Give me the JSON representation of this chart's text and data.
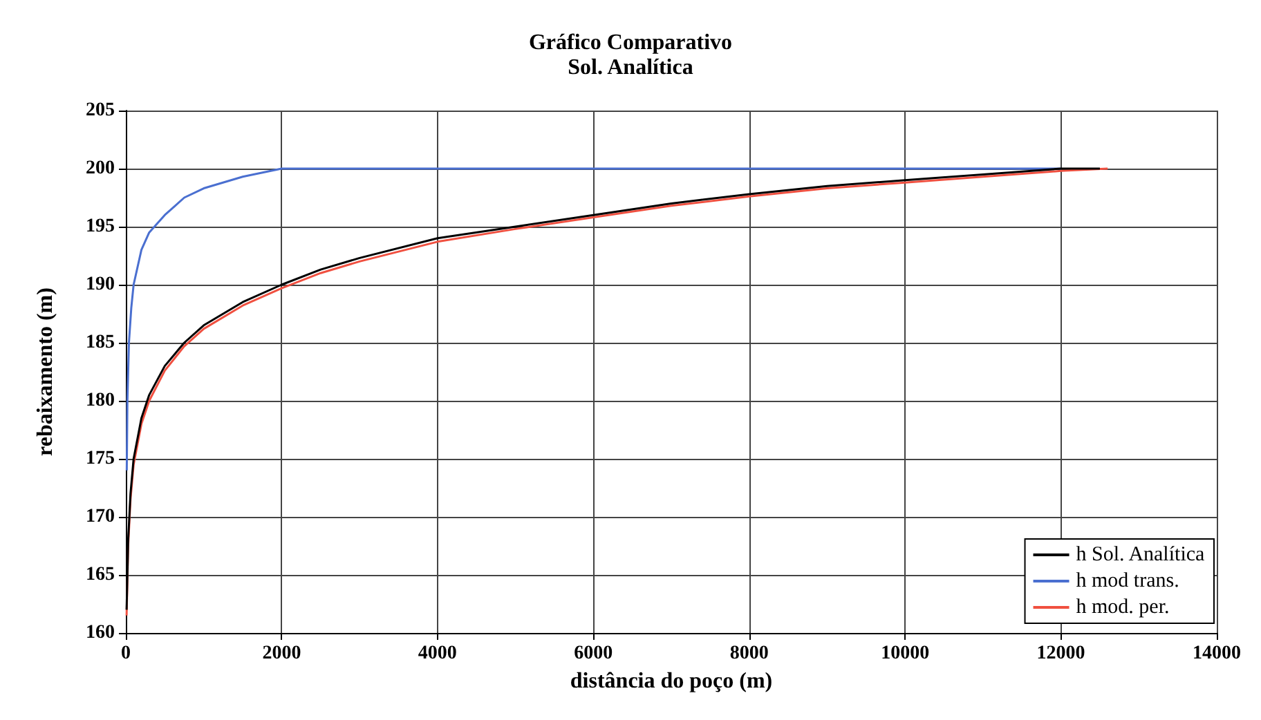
{
  "chart_data": {
    "type": "line",
    "title": "Gráfico Comparativo",
    "subtitle": "Sol. Analítica",
    "xlabel": "distância do poço (m)",
    "ylabel": "rebaixamento (m)",
    "xlim": [
      0,
      14000
    ],
    "xticks": [
      0,
      2000,
      4000,
      6000,
      8000,
      10000,
      12000,
      14000
    ],
    "ylim": [
      160,
      205
    ],
    "yticks": [
      160,
      165,
      170,
      175,
      180,
      185,
      190,
      195,
      200,
      205
    ],
    "grid": true,
    "legend": "bottom right",
    "marker": "none",
    "line_style": "solid",
    "series": [
      {
        "name": "h Sol. Analítica",
        "color": "#000000",
        "x": [
          10,
          30,
          60,
          100,
          200,
          300,
          500,
          750,
          1000,
          1500,
          2000,
          2500,
          3000,
          4000,
          5000,
          6000,
          7000,
          8000,
          9000,
          10000,
          11000,
          12000,
          12500
        ],
        "values": [
          162,
          168,
          172,
          175,
          178.5,
          180.5,
          183,
          185,
          186.5,
          188.5,
          190,
          191.3,
          192.3,
          194,
          195,
          196,
          197,
          197.8,
          198.5,
          199,
          199.5,
          200,
          200
        ]
      },
      {
        "name": "h mod trans.",
        "color": "#4a6fd0",
        "x": [
          12,
          20,
          40,
          70,
          100,
          200,
          300,
          500,
          750,
          1000,
          1500,
          2000,
          2500,
          4000,
          6000,
          8000,
          10000,
          12000
        ],
        "values": [
          174,
          180,
          185,
          188,
          190,
          193,
          194.5,
          196,
          197.5,
          198.3,
          199.3,
          200,
          200,
          200,
          200,
          200,
          200,
          200
        ]
      },
      {
        "name": "h mod. per.",
        "color": "#f05040",
        "x": [
          10,
          30,
          60,
          100,
          200,
          300,
          500,
          750,
          1000,
          1500,
          2000,
          2500,
          3000,
          4000,
          5000,
          6000,
          7000,
          8000,
          9000,
          10000,
          11000,
          12000,
          12600
        ],
        "values": [
          161.5,
          167.5,
          171.5,
          174.5,
          178,
          180,
          182.6,
          184.7,
          186.2,
          188.2,
          189.7,
          191,
          192,
          193.7,
          194.8,
          195.8,
          196.8,
          197.6,
          198.3,
          198.8,
          199.3,
          199.8,
          200
        ]
      }
    ]
  }
}
